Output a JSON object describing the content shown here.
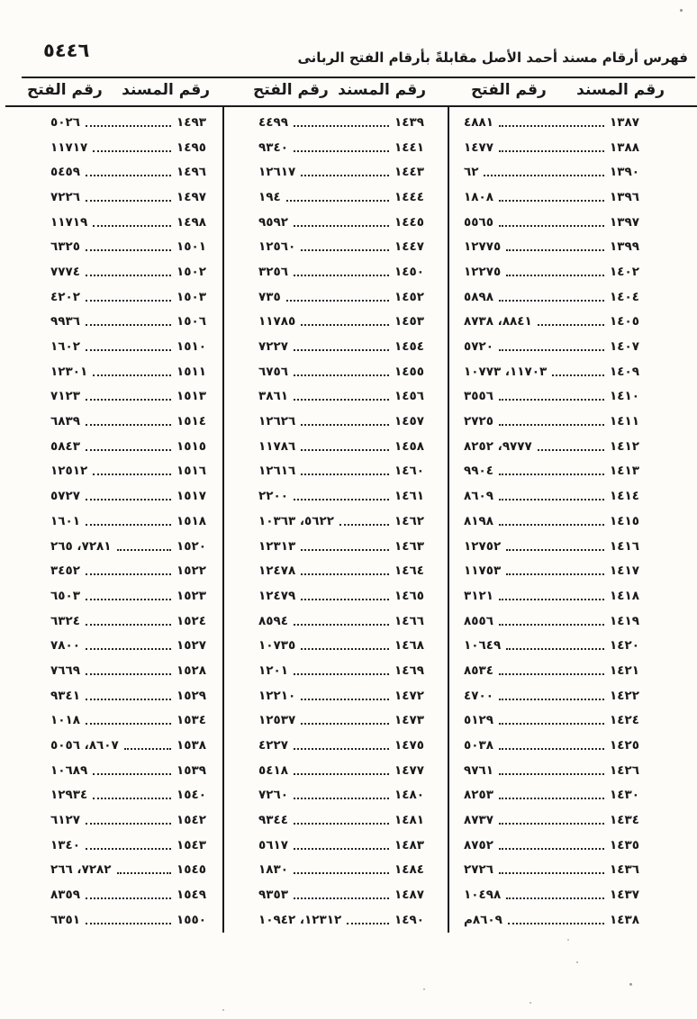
{
  "page": {
    "page_number": "٥٤٤٦",
    "title": "فهرس أرقام مسند أحمد الأصل مقابلةً بأرقام الفتح الربانى"
  },
  "table": {
    "header_musnad": "رقم المسند",
    "header_fath": "رقم الفتح",
    "columns": [
      {
        "position": "right",
        "rows": [
          {
            "musnad": "١٣٨٧",
            "fath": "٤٨٨١"
          },
          {
            "musnad": "١٣٨٨",
            "fath": "١٤٧٧"
          },
          {
            "musnad": "١٣٩٠",
            "fath": "٦٢"
          },
          {
            "musnad": "١٣٩٦",
            "fath": "١٨٠٨"
          },
          {
            "musnad": "١٣٩٧",
            "fath": "٥٥٦٥"
          },
          {
            "musnad": "١٣٩٩",
            "fath": "١٢٧٧٥"
          },
          {
            "musnad": "١٤٠٢",
            "fath": "١٢٢٧٥"
          },
          {
            "musnad": "١٤٠٤",
            "fath": "٥٨٩٨"
          },
          {
            "musnad": "١٤٠٥",
            "fath": "٨٨٤١، ٨٧٣٨"
          },
          {
            "musnad": "١٤٠٧",
            "fath": "٥٧٢٠"
          },
          {
            "musnad": "١٤٠٩",
            "fath": "١١٧٠٣، ١٠٧٧٣"
          },
          {
            "musnad": "١٤١٠",
            "fath": "٣٥٥٦"
          },
          {
            "musnad": "١٤١١",
            "fath": "٢٧٢٥"
          },
          {
            "musnad": "١٤١٢",
            "fath": "٩٧٧٧، ٨٢٥٢"
          },
          {
            "musnad": "١٤١٣",
            "fath": "٩٩٠٤"
          },
          {
            "musnad": "١٤١٤",
            "fath": "٨٦٠٩"
          },
          {
            "musnad": "١٤١٥",
            "fath": "٨١٩٨"
          },
          {
            "musnad": "١٤١٦",
            "fath": "١٢٧٥٢"
          },
          {
            "musnad": "١٤١٧",
            "fath": "١١٧٥٣"
          },
          {
            "musnad": "١٤١٨",
            "fath": "٣١٢١"
          },
          {
            "musnad": "١٤١٩",
            "fath": "٨٥٥٦"
          },
          {
            "musnad": "١٤٢٠",
            "fath": "١٠٦٤٩"
          },
          {
            "musnad": "١٤٢١",
            "fath": "٨٥٣٤"
          },
          {
            "musnad": "١٤٢٢",
            "fath": "٤٧٠٠"
          },
          {
            "musnad": "١٤٢٤",
            "fath": "٥١٢٩"
          },
          {
            "musnad": "١٤٢٥",
            "fath": "٥٠٣٨"
          },
          {
            "musnad": "١٤٢٦",
            "fath": "٩٧٦١"
          },
          {
            "musnad": "١٤٣٠",
            "fath": "٨٢٥٣"
          },
          {
            "musnad": "١٤٣٤",
            "fath": "٨٧٣٧"
          },
          {
            "musnad": "١٤٣٥",
            "fath": "٨٧٥٢"
          },
          {
            "musnad": "١٤٣٦",
            "fath": "٢٧٢٦"
          },
          {
            "musnad": "١٤٣٧",
            "fath": "١٠٤٩٨"
          },
          {
            "musnad": "١٤٣٨",
            "fath": "٨٦٠٩م"
          }
        ]
      },
      {
        "position": "middle",
        "rows": [
          {
            "musnad": "١٤٣٩",
            "fath": "٤٤٩٩"
          },
          {
            "musnad": "١٤٤١",
            "fath": "٩٣٤٠"
          },
          {
            "musnad": "١٤٤٣",
            "fath": "١٢٦١٧"
          },
          {
            "musnad": "١٤٤٤",
            "fath": "١٩٤"
          },
          {
            "musnad": "١٤٤٥",
            "fath": "٩٥٩٢"
          },
          {
            "musnad": "١٤٤٧",
            "fath": "١٢٥٦٠"
          },
          {
            "musnad": "١٤٥٠",
            "fath": "٣٢٥٦"
          },
          {
            "musnad": "١٤٥٢",
            "fath": "٧٣٥"
          },
          {
            "musnad": "١٤٥٣",
            "fath": "١١٧٨٥"
          },
          {
            "musnad": "١٤٥٤",
            "fath": "٧٢٢٧"
          },
          {
            "musnad": "١٤٥٥",
            "fath": "٦٧٥٦"
          },
          {
            "musnad": "١٤٥٦",
            "fath": "٣٨٦١"
          },
          {
            "musnad": "١٤٥٧",
            "fath": "١٢٦٢٦"
          },
          {
            "musnad": "١٤٥٨",
            "fath": "١١٧٨٦"
          },
          {
            "musnad": "١٤٦٠",
            "fath": "١٢٦١٦"
          },
          {
            "musnad": "١٤٦١",
            "fath": "٢٢٠٠"
          },
          {
            "musnad": "١٤٦٢",
            "fath": "٥٦٢٢، ١٠٣٦٣"
          },
          {
            "musnad": "١٤٦٣",
            "fath": "١٢٣١٣"
          },
          {
            "musnad": "١٤٦٤",
            "fath": "١٢٤٧٨"
          },
          {
            "musnad": "١٤٦٥",
            "fath": "١٢٤٧٩"
          },
          {
            "musnad": "١٤٦٦",
            "fath": "٨٥٩٤"
          },
          {
            "musnad": "١٤٦٨",
            "fath": "١٠٧٣٥"
          },
          {
            "musnad": "١٤٦٩",
            "fath": "١٢٠١"
          },
          {
            "musnad": "١٤٧٢",
            "fath": "١٢٢١٠"
          },
          {
            "musnad": "١٤٧٣",
            "fath": "١٢٥٣٧"
          },
          {
            "musnad": "١٤٧٥",
            "fath": "٤٢٢٧"
          },
          {
            "musnad": "١٤٧٧",
            "fath": "٥٤١٨"
          },
          {
            "musnad": "١٤٨٠",
            "fath": "٧٢٦٠"
          },
          {
            "musnad": "١٤٨١",
            "fath": "٩٣٤٤"
          },
          {
            "musnad": "١٤٨٣",
            "fath": "٥٦١٧"
          },
          {
            "musnad": "١٤٨٤",
            "fath": "١٨٣٠"
          },
          {
            "musnad": "١٤٨٧",
            "fath": "٩٣٥٣"
          },
          {
            "musnad": "١٤٩٠",
            "fath": "١٢٣١٢، ١٠٩٤٢"
          }
        ]
      },
      {
        "position": "left",
        "rows": [
          {
            "musnad": "١٤٩٣",
            "fath": "٥٠٢٦"
          },
          {
            "musnad": "١٤٩٥",
            "fath": "١١٧١٧"
          },
          {
            "musnad": "١٤٩٦",
            "fath": "٥٤٥٩"
          },
          {
            "musnad": "١٤٩٧",
            "fath": "٧٢٢٦"
          },
          {
            "musnad": "١٤٩٨",
            "fath": "١١٧١٩"
          },
          {
            "musnad": "١٥٠١",
            "fath": "٦٣٢٥"
          },
          {
            "musnad": "١٥٠٢",
            "fath": "٧٧٧٤"
          },
          {
            "musnad": "١٥٠٣",
            "fath": "٤٢٠٢"
          },
          {
            "musnad": "١٥٠٦",
            "fath": "٩٩٣٦"
          },
          {
            "musnad": "١٥١٠",
            "fath": "١٦٠٢"
          },
          {
            "musnad": "١٥١١",
            "fath": "١٢٣٠١"
          },
          {
            "musnad": "١٥١٣",
            "fath": "٧١٢٣"
          },
          {
            "musnad": "١٥١٤",
            "fath": "٦٨٣٩"
          },
          {
            "musnad": "١٥١٥",
            "fath": "٥٨٤٣"
          },
          {
            "musnad": "١٥١٦",
            "fath": "١٢٥١٢"
          },
          {
            "musnad": "١٥١٧",
            "fath": "٥٧٢٧"
          },
          {
            "musnad": "١٥١٨",
            "fath": "١٦٠١"
          },
          {
            "musnad": "١٥٢٠",
            "fath": "٧٢٨١، ٢٦٥"
          },
          {
            "musnad": "١٥٢٢",
            "fath": "٣٤٥٢"
          },
          {
            "musnad": "١٥٢٣",
            "fath": "٦٥٠٣"
          },
          {
            "musnad": "١٥٢٤",
            "fath": "٦٣٢٤"
          },
          {
            "musnad": "١٥٢٧",
            "fath": "٧٨٠٠"
          },
          {
            "musnad": "١٥٢٨",
            "fath": "٧٦٦٩"
          },
          {
            "musnad": "١٥٢٩",
            "fath": "٩٣٤١"
          },
          {
            "musnad": "١٥٣٤",
            "fath": "١٠١٨"
          },
          {
            "musnad": "١٥٣٨",
            "fath": "٨٦٠٧، ٥٠٥٦"
          },
          {
            "musnad": "١٥٣٩",
            "fath": "١٠٦٨٩"
          },
          {
            "musnad": "١٥٤٠",
            "fath": "١٢٩٣٤"
          },
          {
            "musnad": "١٥٤٢",
            "fath": "٦١٢٧"
          },
          {
            "musnad": "١٥٤٣",
            "fath": "١٣٤٠"
          },
          {
            "musnad": "١٥٤٥",
            "fath": "٧٢٨٢، ٢٦٦"
          },
          {
            "musnad": "١٥٤٩",
            "fath": "٨٣٥٩"
          },
          {
            "musnad": "١٥٥٠",
            "fath": "٦٣٥١"
          }
        ]
      }
    ]
  }
}
